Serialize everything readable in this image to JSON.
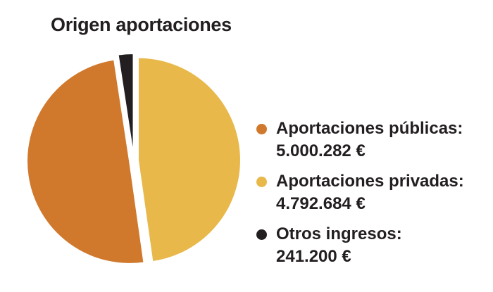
{
  "title": "Origen aportaciones",
  "chart_data": {
    "type": "pie",
    "title": "Origen aportaciones",
    "categories": [
      "Aportaciones públicas:",
      "Aportaciones privadas:",
      "Otros ingresos:"
    ],
    "values": [
      5000282,
      4792684,
      241200
    ],
    "value_labels": [
      "5.000.282 €",
      "4.792.684 €",
      "241.200 €"
    ],
    "colors": [
      "#d0782c",
      "#e8b84a",
      "#231f20"
    ],
    "legend_position": "right"
  }
}
